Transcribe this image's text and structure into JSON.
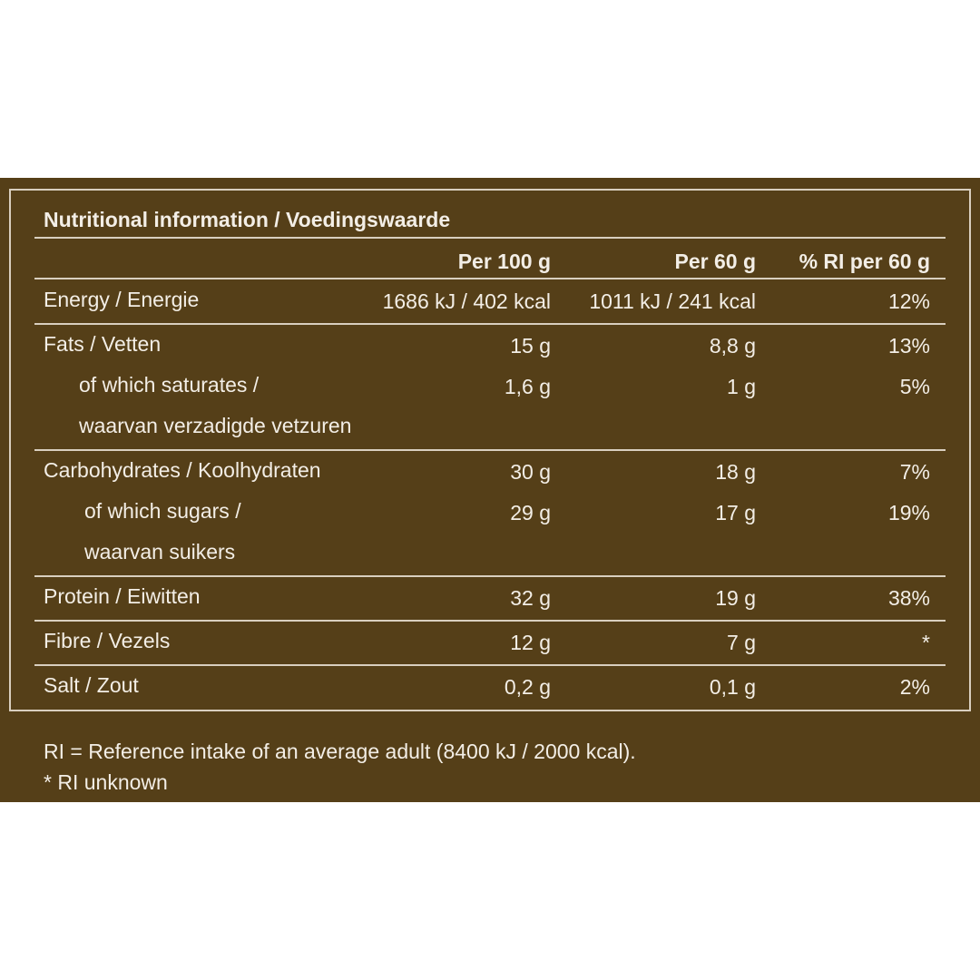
{
  "table": {
    "title": "Nutritional information / Voedingswaarde",
    "columns": [
      "Per 100 g",
      "Per 60 g",
      "% RI per 60 g"
    ],
    "groups": [
      [
        {
          "lines": [
            "Energy / Energie"
          ],
          "cells": [
            "1686 kJ / 402 kcal",
            "1011 kJ / 241 kcal",
            "12%"
          ]
        }
      ],
      [
        {
          "lines": [
            "Fats / Vetten"
          ],
          "cells": [
            "15 g",
            "8,8 g",
            "13%"
          ]
        },
        {
          "lines": [
            "of which saturates /",
            "waarvan verzadigde vetzuren"
          ],
          "cells": [
            "1,6 g",
            "1 g",
            "5%"
          ]
        }
      ],
      [
        {
          "lines": [
            "Carbohydrates / Koolhydraten"
          ],
          "cells": [
            "30 g",
            "18 g",
            "7%"
          ]
        },
        {
          "lines": [
            "of which sugars /",
            "waarvan suikers"
          ],
          "cells": [
            "29 g",
            "17 g",
            "19%"
          ]
        }
      ],
      [
        {
          "lines": [
            "Protein / Eiwitten"
          ],
          "cells": [
            "32 g",
            "19 g",
            "38%"
          ]
        }
      ],
      [
        {
          "lines": [
            "Fibre / Vezels"
          ],
          "cells": [
            "12 g",
            "7 g",
            "*"
          ]
        }
      ],
      [
        {
          "lines": [
            "Salt / Zout"
          ],
          "cells": [
            "0,2 g",
            "0,1 g",
            "2%"
          ]
        }
      ]
    ]
  },
  "footnotes": [
    "RI = Reference intake of an average adult (8400 kJ / 2000 kcal).",
    "* RI unknown"
  ]
}
